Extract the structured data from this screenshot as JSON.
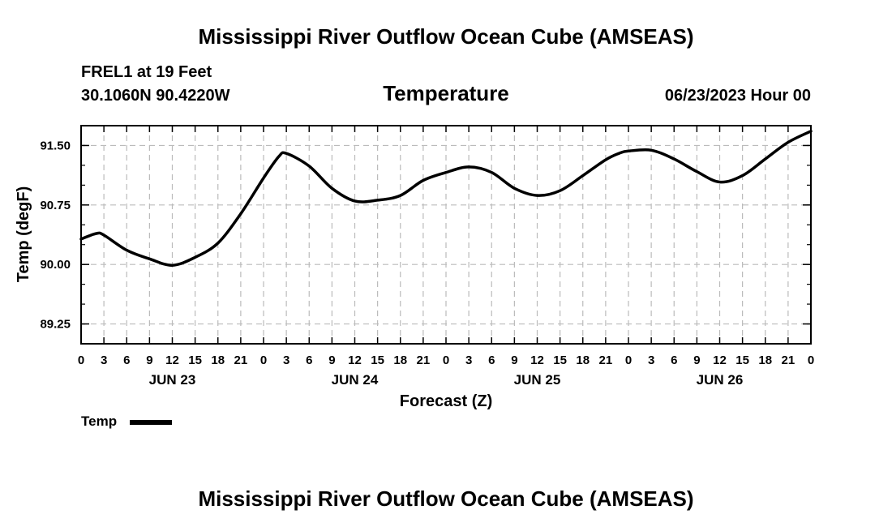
{
  "page": {
    "title_top": "Mississippi River Outflow Ocean Cube (AMSEAS)",
    "title_bottom": "Mississippi River Outflow Ocean Cube (AMSEAS)",
    "station": "FREL1 at 19 Feet",
    "coords": "30.1060N  90.4220W",
    "date": "06/23/2023 Hour 00"
  },
  "colors": {
    "line": "#000000",
    "grid": "#bbbbbb",
    "background": "#ffffff"
  },
  "chart_data": {
    "type": "line",
    "title": "Temperature",
    "xlabel": "Forecast (Z)",
    "ylabel": "Temp (degF)",
    "xlim": [
      0,
      96
    ],
    "ylim": [
      89.0,
      91.75
    ],
    "grid": true,
    "y_ticks": [
      89.25,
      90.0,
      90.75,
      91.5
    ],
    "y_tick_labels": [
      "89.25",
      "90.00",
      "90.75",
      "91.50"
    ],
    "x_ticks": [
      0,
      3,
      6,
      9,
      12,
      15,
      18,
      21,
      24,
      27,
      30,
      33,
      36,
      39,
      42,
      45,
      48,
      51,
      54,
      57,
      60,
      63,
      66,
      69,
      72,
      75,
      78,
      81,
      84,
      87,
      90,
      93,
      96
    ],
    "x_tick_labels": [
      "0",
      "3",
      "6",
      "9",
      "12",
      "15",
      "18",
      "21",
      "0",
      "3",
      "6",
      "9",
      "12",
      "15",
      "18",
      "21",
      "0",
      "3",
      "6",
      "9",
      "12",
      "15",
      "18",
      "21",
      "0",
      "3",
      "6",
      "9",
      "12",
      "15",
      "18",
      "21",
      "0"
    ],
    "day_labels": [
      {
        "x": 12,
        "label": "JUN 23"
      },
      {
        "x": 36,
        "label": "JUN 24"
      },
      {
        "x": 60,
        "label": "JUN 25"
      },
      {
        "x": 84,
        "label": "JUN 26"
      }
    ],
    "legend": "top-left below plot",
    "series": [
      {
        "name": "Temp",
        "x": [
          0,
          2,
          3,
          6,
          9,
          12,
          15,
          18,
          21,
          24,
          26,
          27,
          30,
          33,
          36,
          39,
          42,
          45,
          48,
          51,
          54,
          57,
          60,
          63,
          66,
          69,
          71,
          72,
          75,
          78,
          81,
          84,
          87,
          90,
          93,
          96
        ],
        "values": [
          90.32,
          90.39,
          90.37,
          90.18,
          90.07,
          89.99,
          90.09,
          90.27,
          90.64,
          91.09,
          91.36,
          91.4,
          91.24,
          90.96,
          90.8,
          90.81,
          90.87,
          91.06,
          91.16,
          91.23,
          91.16,
          90.96,
          90.87,
          90.93,
          91.12,
          91.32,
          91.41,
          91.43,
          91.44,
          91.33,
          91.17,
          91.04,
          91.12,
          91.33,
          91.54,
          91.68
        ]
      }
    ]
  }
}
